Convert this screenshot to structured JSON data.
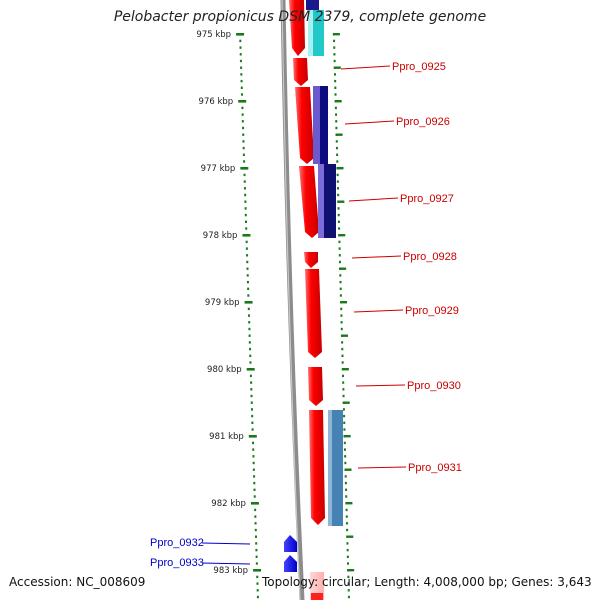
{
  "title": "Pelobacter propionicus DSM 2379, complete genome",
  "scale_labels": [
    "975 kbp",
    "976 kbp",
    "977 kbp",
    "978 kbp",
    "979 kbp",
    "980 kbp",
    "981 kbp",
    "982 kbp",
    "983 kbp"
  ],
  "genes": {
    "right": [
      "Ppro_0925",
      "Ppro_0926",
      "Ppro_0927",
      "Ppro_0928",
      "Ppro_0929",
      "Ppro_0930",
      "Ppro_0931"
    ],
    "left": [
      "Ppro_0932",
      "Ppro_0933"
    ]
  },
  "footer": {
    "accession": "Accession: NC_008609",
    "summary": "Topology: circular; Length: 4,008,000 bp; Genes: 3,643"
  },
  "colors": {
    "forward_gene": "#ff0000",
    "reverse_gene": "#0000ff",
    "forward_label": "#cc0000",
    "reverse_label": "#0000cc",
    "scale_ticks": "#1a7a1a",
    "backbone": "#8c8c8c"
  }
}
